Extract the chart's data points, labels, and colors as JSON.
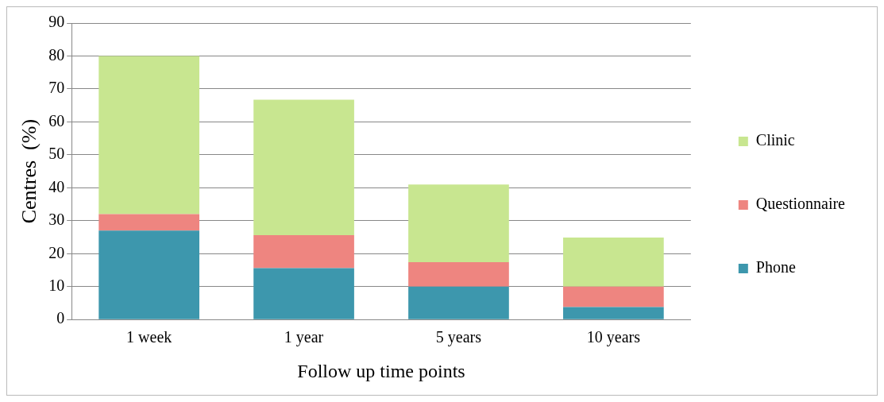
{
  "chart_data": {
    "type": "bar",
    "xlabel": "Follow up time points",
    "ylabel": "Centres  (%)",
    "categories": [
      "1 week",
      "1 year",
      "5 years",
      "10 years"
    ],
    "stacked": true,
    "series": [
      {
        "name": "Phone",
        "color": "#3d97ad",
        "values": [
          27,
          15.6,
          10,
          3.8
        ]
      },
      {
        "name": "Questionnaire",
        "color": "#ee8580",
        "values": [
          5,
          10,
          7.4,
          6.2
        ]
      },
      {
        "name": "Clinic",
        "color": "#c8e690",
        "values": [
          48,
          41.1,
          23.6,
          14.9
        ]
      }
    ],
    "ylim": [
      0,
      90
    ],
    "yticks": [
      0,
      10,
      20,
      30,
      40,
      50,
      60,
      70,
      80,
      90
    ],
    "grid": "y",
    "legend": "right"
  }
}
